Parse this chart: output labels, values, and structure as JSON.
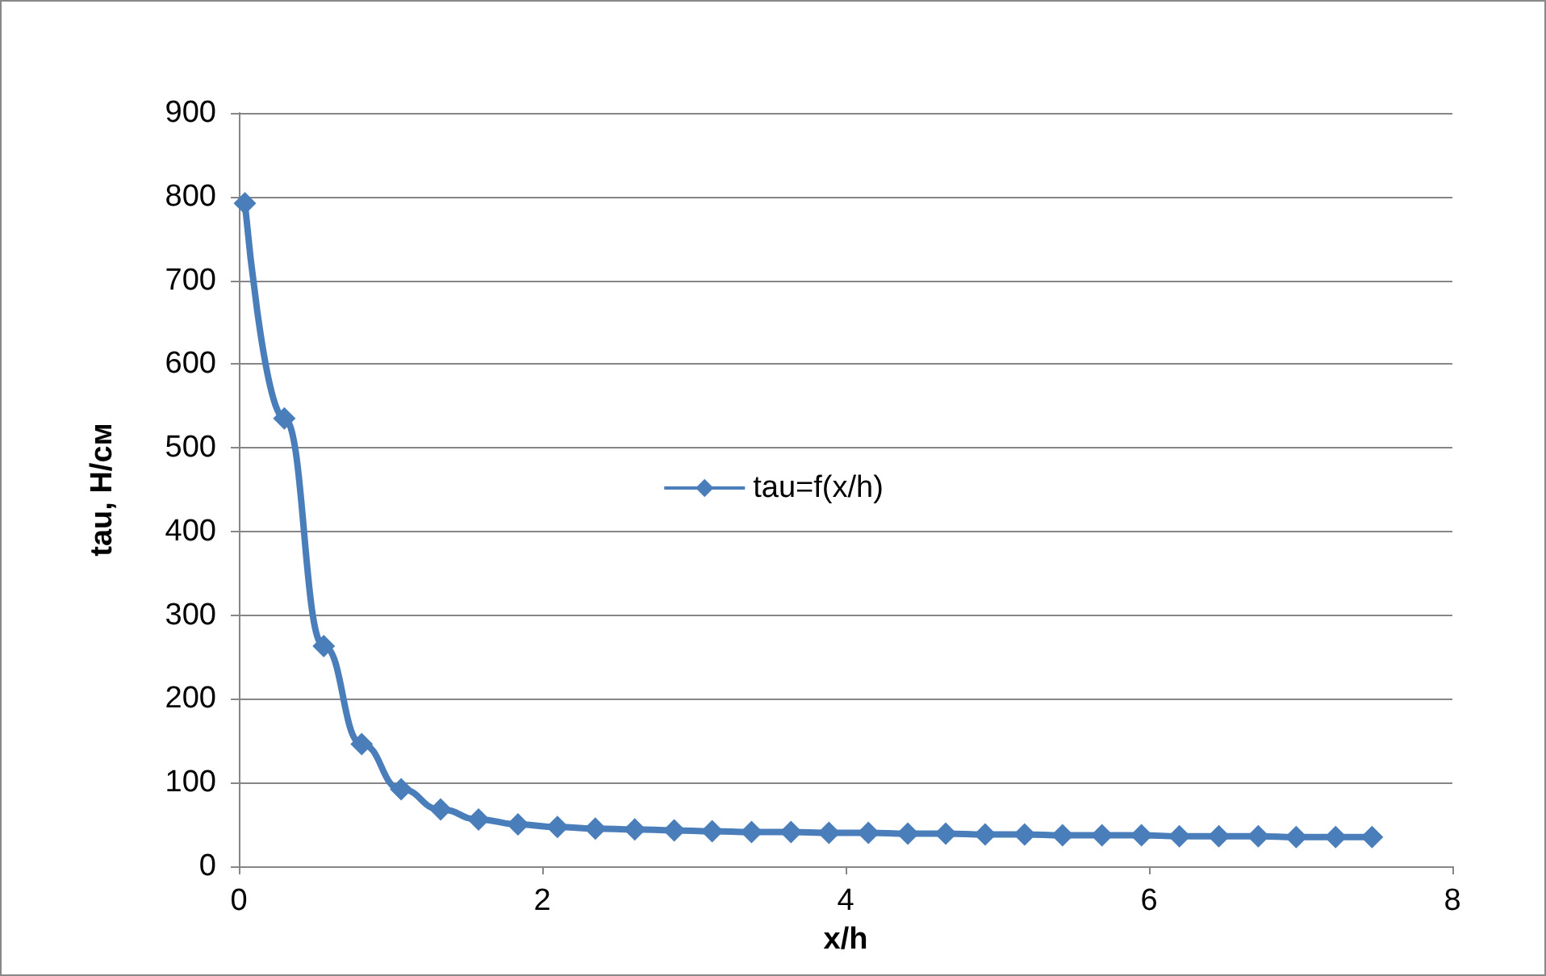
{
  "chart_data": {
    "type": "line",
    "xlabel": "x/h",
    "ylabel": "tau, Н/см",
    "x": [
      0.04,
      0.3,
      0.56,
      0.81,
      1.07,
      1.33,
      1.58,
      1.84,
      2.1,
      2.35,
      2.61,
      2.87,
      3.12,
      3.38,
      3.64,
      3.89,
      4.15,
      4.41,
      4.66,
      4.92,
      5.18,
      5.43,
      5.69,
      5.95,
      6.2,
      6.46,
      6.72,
      6.97,
      7.23,
      7.47
    ],
    "series": [
      {
        "name": "tau=f(x/h)",
        "color": "#4a7ebb",
        "values": [
          792,
          535,
          263,
          146,
          92,
          68,
          56,
          50,
          47,
          45,
          44,
          43,
          42,
          41,
          41,
          40,
          40,
          39,
          39,
          38,
          38,
          37,
          37,
          37,
          36,
          36,
          36,
          35,
          35,
          35
        ]
      }
    ],
    "xlim": [
      0,
      8
    ],
    "xticks": [
      0,
      2,
      4,
      6,
      8
    ],
    "ylim": [
      0,
      900
    ],
    "yticks": [
      0,
      100,
      200,
      300,
      400,
      500,
      600,
      700,
      800,
      900
    ],
    "grid": "y",
    "legend": "center",
    "marker": "diamond",
    "line_style": "solid"
  }
}
